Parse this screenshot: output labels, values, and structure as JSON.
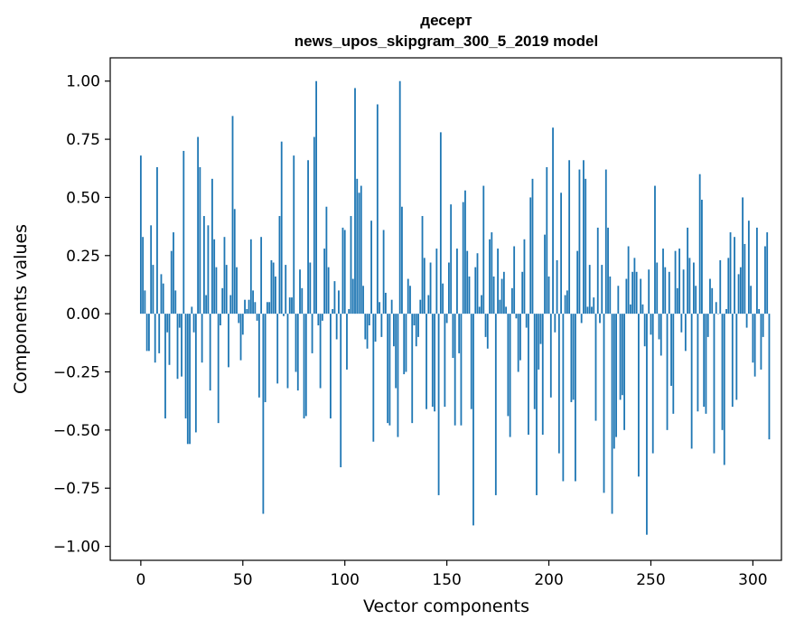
{
  "chart_data": {
    "type": "bar",
    "title": "десерт",
    "subtitle": "news_upos_skipgram_300_5_2019 model",
    "xlabel": "Vector components",
    "ylabel": "Components values",
    "xlim": [
      -15,
      314
    ],
    "ylim": [
      -1.06,
      1.1
    ],
    "xticks": [
      0,
      50,
      100,
      150,
      200,
      250,
      300
    ],
    "yticks": [
      -1.0,
      -0.75,
      -0.5,
      -0.25,
      0.0,
      0.25,
      0.5,
      0.75,
      1.0
    ],
    "xtick_labels": [
      "0",
      "50",
      "100",
      "150",
      "200",
      "250",
      "300"
    ],
    "ytick_labels": [
      "−1.00",
      "−0.75",
      "−0.50",
      "−0.25",
      "0.00",
      "0.25",
      "0.50",
      "0.75",
      "1.00"
    ],
    "bar_color": "#1f77b4",
    "grid": false,
    "values": [
      0.68,
      0.33,
      0.1,
      -0.16,
      -0.16,
      0.38,
      0.21,
      -0.21,
      0.63,
      -0.17,
      0.17,
      0.13,
      -0.45,
      -0.08,
      -0.22,
      0.27,
      0.35,
      0.1,
      -0.28,
      -0.06,
      -0.27,
      0.7,
      -0.45,
      -0.56,
      -0.56,
      0.03,
      -0.08,
      -0.51,
      0.76,
      0.63,
      -0.21,
      0.42,
      0.08,
      0.38,
      -0.33,
      0.58,
      0.32,
      0.2,
      -0.47,
      -0.05,
      0.11,
      0.33,
      0.21,
      -0.23,
      0.08,
      0.85,
      0.45,
      0.2,
      -0.04,
      -0.2,
      -0.09,
      0.06,
      0.02,
      0.06,
      0.32,
      0.1,
      0.05,
      -0.03,
      -0.36,
      0.33,
      -0.86,
      -0.38,
      0.05,
      0.05,
      0.23,
      0.22,
      0.16,
      -0.3,
      0.42,
      0.74,
      -0.01,
      0.21,
      -0.32,
      0.07,
      0.07,
      0.68,
      -0.25,
      -0.33,
      0.19,
      0.11,
      -0.45,
      -0.44,
      0.66,
      0.22,
      -0.17,
      0.76,
      1.0,
      -0.05,
      -0.32,
      -0.03,
      0.28,
      0.46,
      0.2,
      -0.45,
      0.02,
      0.14,
      -0.11,
      0.1,
      -0.66,
      0.37,
      0.36,
      -0.24,
      0.02,
      0.42,
      0.15,
      0.97,
      0.58,
      0.52,
      0.55,
      0.12,
      -0.11,
      -0.15,
      -0.05,
      0.4,
      -0.55,
      -0.12,
      0.9,
      0.05,
      -0.1,
      0.36,
      0.09,
      -0.47,
      -0.48,
      0.06,
      -0.14,
      -0.32,
      -0.53,
      1.0,
      0.46,
      -0.26,
      -0.25,
      0.15,
      0.12,
      -0.47,
      -0.05,
      -0.14,
      -0.1,
      0.06,
      0.42,
      0.24,
      -0.41,
      0.08,
      0.22,
      -0.4,
      -0.42,
      0.28,
      -0.78,
      0.78,
      0.13,
      -0.4,
      -0.04,
      0.22,
      0.47,
      -0.19,
      -0.48,
      0.28,
      -0.17,
      -0.48,
      0.48,
      0.53,
      0.27,
      0.16,
      -0.41,
      -0.91,
      0.2,
      0.26,
      0.03,
      0.08,
      0.55,
      -0.1,
      -0.15,
      0.32,
      0.35,
      0.16,
      -0.78,
      0.28,
      0.06,
      0.15,
      0.18,
      0.03,
      -0.44,
      -0.53,
      0.11,
      0.29,
      -0.02,
      -0.25,
      -0.2,
      0.18,
      0.32,
      -0.06,
      -0.52,
      0.5,
      0.58,
      -0.41,
      -0.78,
      -0.24,
      -0.13,
      -0.52,
      0.34,
      0.63,
      0.16,
      -0.36,
      0.8,
      -0.08,
      0.23,
      -0.6,
      0.52,
      -0.72,
      0.08,
      0.1,
      0.66,
      -0.38,
      -0.37,
      -0.72,
      0.27,
      0.62,
      -0.04,
      0.66,
      0.58,
      0.03,
      0.21,
      0.03,
      0.07,
      -0.46,
      0.37,
      -0.04,
      0.21,
      -0.77,
      0.62,
      0.37,
      0.16,
      -0.86,
      -0.58,
      -0.53,
      0.12,
      -0.37,
      -0.35,
      -0.5,
      0.15,
      0.29,
      0.04,
      0.18,
      0.24,
      0.18,
      -0.7,
      0.15,
      0.04,
      -0.14,
      -0.95,
      0.19,
      -0.09,
      -0.6,
      0.55,
      0.22,
      -0.11,
      -0.18,
      0.28,
      0.2,
      -0.5,
      0.18,
      -0.31,
      -0.43,
      0.27,
      0.11,
      0.28,
      -0.08,
      0.19,
      -0.16,
      0.37,
      0.24,
      -0.58,
      0.22,
      0.12,
      -0.42,
      0.6,
      0.49,
      -0.4,
      -0.43,
      -0.1,
      0.15,
      0.11,
      -0.6,
      0.05,
      0.0,
      0.23,
      -0.5,
      -0.65,
      0.02,
      0.24,
      0.35,
      -0.4,
      0.33,
      -0.37,
      0.17,
      0.2,
      0.5,
      0.3,
      -0.06,
      0.4,
      0.12,
      -0.21,
      -0.27,
      0.37,
      0.02,
      -0.24,
      -0.1,
      0.29,
      0.35,
      -0.54
    ]
  }
}
